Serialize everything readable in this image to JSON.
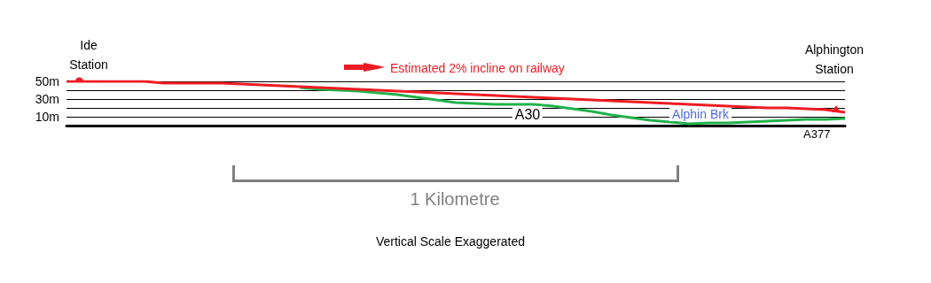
{
  "chart_data": {
    "type": "line",
    "categories": [
      null,
      null,
      null,
      null,
      null,
      null,
      null,
      null,
      null,
      null,
      null,
      null,
      null,
      null,
      null,
      null,
      null,
      null,
      null,
      null,
      null,
      null,
      null,
      null,
      null,
      null,
      null,
      null,
      null,
      null,
      null,
      null,
      null,
      null,
      null,
      null,
      null,
      null,
      null,
      null,
      null
    ],
    "series": [
      {
        "color": "#22b14c",
        "values": [
          null,
          null,
          null,
          null,
          null,
          null,
          null,
          null,
          null,
          null,
          null,
          null,
          43,
          41,
          40,
          39,
          37,
          35,
          32,
          29,
          26,
          25,
          24,
          24,
          24,
          22,
          19,
          16,
          12,
          9,
          6,
          4,
          2,
          3,
          3,
          4,
          5,
          6,
          7,
          7,
          8
        ]
      },
      {
        "color": "#ed1c24",
        "values": [
          50,
          50,
          50,
          50,
          50,
          48,
          48,
          48,
          48,
          47,
          46,
          45,
          44,
          43,
          42,
          41,
          40,
          39,
          38,
          37,
          36,
          35,
          34,
          33,
          32,
          31,
          30,
          29,
          28,
          27,
          26,
          25,
          24,
          23,
          22,
          21,
          20,
          20,
          19,
          18,
          15
        ]
      }
    ],
    "ylim": [
      0,
      50
    ],
    "yticks": [
      {
        "value": 0,
        "label": null
      },
      {
        "value": 10,
        "label": "10m"
      },
      {
        "value": 20,
        "label": null
      },
      {
        "value": 30,
        "label": "30m"
      },
      {
        "value": 40,
        "label": null
      },
      {
        "value": 50,
        "label": "50m"
      }
    ],
    "grid": "y",
    "tick_labels": "y",
    "marker": "none",
    "line_style": "solid",
    "annotations": [
      "Ide Station",
      "Alphington Station",
      "Estimated 2% incline on railway",
      "A30",
      "Alphin Brk",
      "A377",
      "1 Kilometre",
      "Vertical Scale Exaggerated"
    ]
  }
}
